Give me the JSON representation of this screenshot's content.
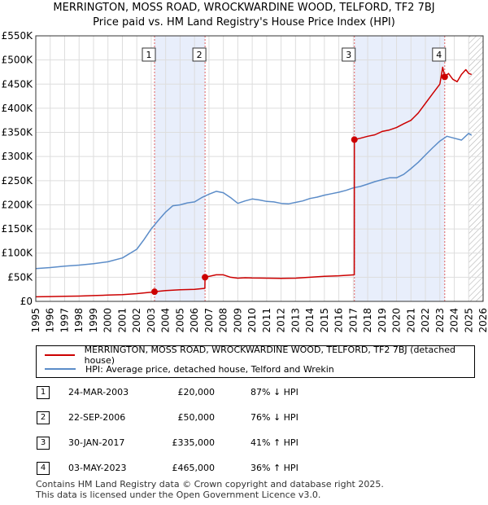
{
  "title_line1": "MERRINGTON, MOSS ROAD, WROCKWARDINE WOOD, TELFORD, TF2 7BJ",
  "title_line2": "Price paid vs. HM Land Registry's House Price Index (HPI)",
  "colors": {
    "property": "#cc0000",
    "hpi": "#5b8cc8",
    "shade": "#e8eefb",
    "hatch": "#b4b4b4",
    "grid": "#dddddd",
    "vline": "#e06060",
    "marker_border": "#333333"
  },
  "chart_data": {
    "type": "line",
    "xlim": [
      1995,
      2026
    ],
    "ylim": [
      0,
      550000
    ],
    "y_ticks": [
      0,
      50000,
      100000,
      150000,
      200000,
      250000,
      300000,
      350000,
      400000,
      450000,
      500000,
      550000
    ],
    "y_tick_labels": [
      "£0",
      "£50K",
      "£100K",
      "£150K",
      "£200K",
      "£250K",
      "£300K",
      "£350K",
      "£400K",
      "£450K",
      "£500K",
      "£550K"
    ],
    "x_ticks": [
      1995,
      1996,
      1997,
      1998,
      1999,
      2000,
      2001,
      2002,
      2003,
      2004,
      2005,
      2006,
      2007,
      2008,
      2009,
      2010,
      2011,
      2012,
      2013,
      2014,
      2015,
      2016,
      2017,
      2018,
      2019,
      2020,
      2021,
      2022,
      2023,
      2024,
      2025,
      2026
    ],
    "shaded_ranges": [
      [
        2003.23,
        2006.73
      ],
      [
        2017.08,
        2023.34
      ]
    ],
    "hatched_from": 2025.0,
    "series": [
      {
        "name": "MERRINGTON, MOSS ROAD, WROCKWARDINE WOOD, TELFORD, TF2 7BJ (detached house)",
        "color_key": "property",
        "x": [
          1995.0,
          1996.0,
          1997.0,
          1998.0,
          1999.0,
          2000.0,
          2001.0,
          2002.0,
          2003.0,
          2003.23,
          2004.0,
          2005.0,
          2006.0,
          2006.72,
          2006.73,
          2007.5,
          2008.0,
          2008.5,
          2009.0,
          2009.5,
          2010.0,
          2011.0,
          2012.0,
          2013.0,
          2014.0,
          2015.0,
          2016.0,
          2017.07,
          2017.08,
          2017.5,
          2018.0,
          2018.5,
          2019.0,
          2019.5,
          2020.0,
          2020.5,
          2021.0,
          2021.5,
          2022.0,
          2022.5,
          2023.0,
          2023.2,
          2023.34,
          2023.6,
          2023.9,
          2024.2,
          2024.5,
          2024.8,
          2025.0,
          2025.2
        ],
        "y": [
          9500,
          10000,
          10500,
          11000,
          12000,
          13000,
          14000,
          16000,
          19000,
          20000,
          22500,
          24000,
          25000,
          27000,
          50000,
          55000,
          55000,
          50000,
          48000,
          49000,
          48500,
          48000,
          47500,
          48000,
          50000,
          52000,
          53000,
          55000,
          335000,
          338000,
          342000,
          345000,
          352000,
          355000,
          360000,
          368000,
          375000,
          390000,
          410000,
          430000,
          450000,
          485000,
          465000,
          472000,
          460000,
          455000,
          470000,
          480000,
          472000,
          470000
        ]
      },
      {
        "name": "HPI: Average price, detached house, Telford and Wrekin",
        "color_key": "hpi",
        "x": [
          1995.0,
          1996.0,
          1997.0,
          1998.0,
          1999.0,
          2000.0,
          2001.0,
          2002.0,
          2002.5,
          2003.0,
          2003.5,
          2004.0,
          2004.5,
          2005.0,
          2005.5,
          2006.0,
          2006.5,
          2007.0,
          2007.5,
          2008.0,
          2008.5,
          2009.0,
          2009.5,
          2010.0,
          2010.5,
          2011.0,
          2011.5,
          2012.0,
          2012.5,
          2013.0,
          2013.5,
          2014.0,
          2014.5,
          2015.0,
          2015.5,
          2016.0,
          2016.5,
          2017.0,
          2017.5,
          2018.0,
          2018.5,
          2019.0,
          2019.5,
          2020.0,
          2020.5,
          2021.0,
          2021.5,
          2022.0,
          2022.5,
          2023.0,
          2023.5,
          2024.0,
          2024.5,
          2025.0,
          2025.2
        ],
        "y": [
          68000,
          70000,
          73000,
          75000,
          78000,
          82000,
          90000,
          108000,
          128000,
          150000,
          168000,
          185000,
          198000,
          200000,
          204000,
          206000,
          215000,
          222000,
          228000,
          225000,
          215000,
          203000,
          208000,
          212000,
          210000,
          207000,
          206000,
          203000,
          202000,
          205000,
          208000,
          213000,
          216000,
          220000,
          223000,
          226000,
          230000,
          235000,
          238000,
          243000,
          248000,
          252000,
          256000,
          256000,
          263000,
          275000,
          288000,
          303000,
          318000,
          332000,
          342000,
          338000,
          334000,
          348000,
          344000
        ]
      }
    ],
    "sales": [
      {
        "label": "1",
        "x": 2003.23,
        "y": 20000
      },
      {
        "label": "2",
        "x": 2006.73,
        "y": 50000
      },
      {
        "label": "3",
        "x": 2017.08,
        "y": 335000
      },
      {
        "label": "4",
        "x": 2023.34,
        "y": 465000
      }
    ]
  },
  "legend": {
    "property_label": "MERRINGTON, MOSS ROAD, WROCKWARDINE WOOD, TELFORD, TF2 7BJ (detached house)",
    "hpi_label": "HPI: Average price, detached house, Telford and Wrekin"
  },
  "transactions": [
    {
      "num": "1",
      "date": "24-MAR-2003",
      "price": "£20,000",
      "hpi": "87% ↓ HPI"
    },
    {
      "num": "2",
      "date": "22-SEP-2006",
      "price": "£50,000",
      "hpi": "76% ↓ HPI"
    },
    {
      "num": "3",
      "date": "30-JAN-2017",
      "price": "£335,000",
      "hpi": "41% ↑ HPI"
    },
    {
      "num": "4",
      "date": "03-MAY-2023",
      "price": "£465,000",
      "hpi": "36% ↑ HPI"
    }
  ],
  "footer": {
    "line1": "Contains HM Land Registry data © Crown copyright and database right 2025.",
    "line2": "This data is licensed under the Open Government Licence v3.0."
  }
}
